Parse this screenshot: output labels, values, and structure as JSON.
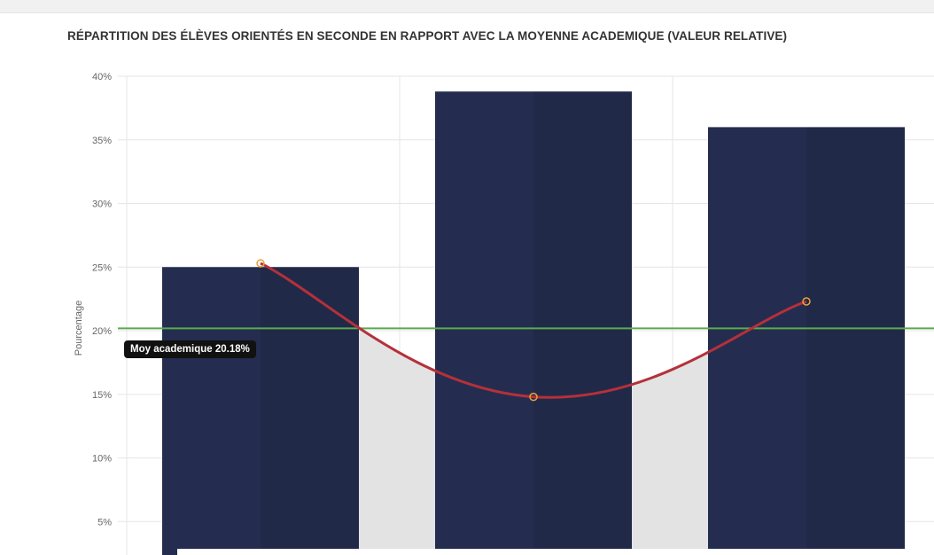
{
  "chart_data": {
    "type": "bar",
    "title": "RÉPARTITION DES ÉLÈVES ORIENTÉS EN SECONDE EN RAPPORT AVEC LA MOYENNE ACADEMIQUE (VALEUR RELATIVE)",
    "ylabel": "Pourcentage",
    "xlabel": "",
    "y_tick_labels": [
      "5%",
      "10%",
      "15%",
      "20%",
      "25%",
      "30%",
      "35%",
      "40%"
    ],
    "ylim": [
      0,
      40
    ],
    "grid": true,
    "categories": [
      "",
      "",
      ""
    ],
    "series": [
      {
        "type": "bar",
        "values": [
          25,
          38.8,
          36
        ],
        "color": "#242d4f"
      },
      {
        "type": "line",
        "values": [
          25.3,
          14.8,
          22.3
        ],
        "color": "#b5303a",
        "marker_color": "#e8a23a"
      }
    ],
    "reference_line": {
      "value": 20.18,
      "color": "#5aaa4e",
      "label": "Moy academique 20.18%"
    },
    "colors": {
      "background": "#ffffff",
      "grid": "#e6e6e6",
      "shaded_area": "#e3e3e3"
    }
  }
}
